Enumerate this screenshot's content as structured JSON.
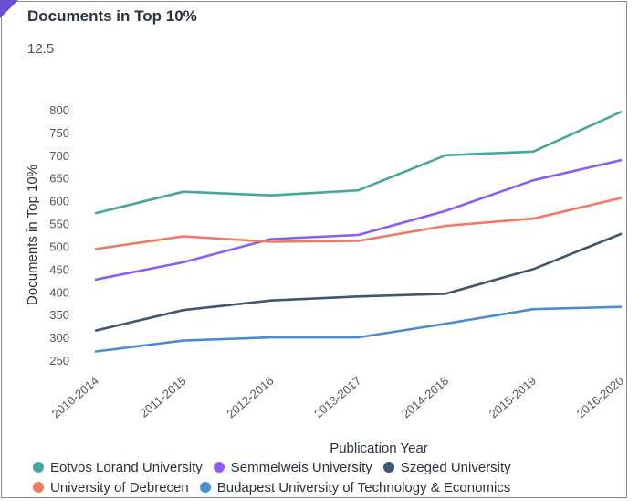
{
  "chart_data": {
    "type": "line",
    "title": "Documents in Top 10%",
    "subtitle": "12.5",
    "xlabel": "Publication Year",
    "ylabel": "Documents in Top 10%",
    "categories": [
      "2010-2014",
      "2011-2015",
      "2012-2016",
      "2013-2017",
      "2014-2018",
      "2015-2019",
      "2016-2020"
    ],
    "y_ticks": [
      250,
      300,
      350,
      400,
      450,
      500,
      550,
      600,
      650,
      700,
      750,
      800
    ],
    "ylim": [
      250,
      800
    ],
    "grid": false,
    "legend_position": "bottom",
    "series": [
      {
        "name": "Eotvos Lorand University",
        "color": "#45a7a0",
        "values": [
          573,
          620,
          612,
          623,
          700,
          708,
          795
        ]
      },
      {
        "name": "Semmelweis University",
        "color": "#8b5cf6",
        "values": [
          427,
          465,
          516,
          525,
          578,
          645,
          689
        ]
      },
      {
        "name": "Szeged University",
        "color": "#3f5670",
        "values": [
          315,
          360,
          381,
          390,
          396,
          450,
          527
        ]
      },
      {
        "name": "University of Debrecen",
        "color": "#ee7a60",
        "values": [
          494,
          522,
          510,
          512,
          545,
          561,
          606
        ]
      },
      {
        "name": "Budapest University of Technology & Economics",
        "color": "#4a8cd2",
        "values": [
          269,
          293,
          300,
          300,
          330,
          362,
          367
        ]
      }
    ]
  }
}
